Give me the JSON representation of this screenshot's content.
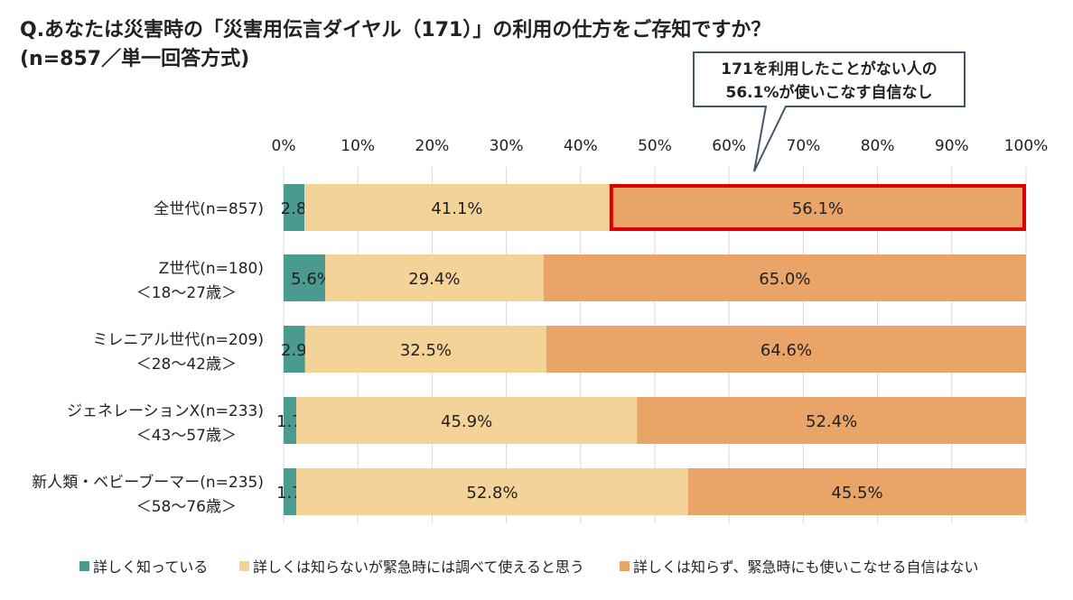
{
  "chart_data": {
    "type": "bar",
    "orientation": "horizontal",
    "stacked": true,
    "title": "Q.あなたは災害時の「災害用伝言ダイヤル（171）」の利用の仕方をご存知ですか？",
    "subtitle": "(n=857／単一回答方式)",
    "categories": [
      [
        "全世代(n=857)"
      ],
      [
        "Z世代(n=180)",
        "＜18～27歳＞"
      ],
      [
        "ミレニアル世代(n=209)",
        "＜28～42歳＞"
      ],
      [
        "ジェネレーションX(n=233)",
        "＜43～57歳＞"
      ],
      [
        "新人類・ベビーブーマー(n=235)",
        "＜58～76歳＞"
      ]
    ],
    "series": [
      {
        "name": "詳しく知っている",
        "color": "#4a9a8f",
        "values": [
          2.8,
          5.6,
          2.9,
          1.7,
          1.7
        ]
      },
      {
        "name": "詳しくは知らないが緊急時には調べて使えると思う",
        "color": "#f3d398",
        "values": [
          41.1,
          29.4,
          32.5,
          45.9,
          52.8
        ]
      },
      {
        "name": "詳しくは知らず、緊急時にも使いこなせる自信はない",
        "color": "#e9a468",
        "values": [
          56.1,
          65.0,
          64.6,
          52.4,
          45.5
        ]
      }
    ],
    "xlim": [
      0,
      100
    ],
    "ticks": [
      "0%",
      "10%",
      "20%",
      "30%",
      "40%",
      "50%",
      "60%",
      "70%",
      "80%",
      "90%",
      "100%"
    ],
    "grid": true,
    "legend": "bottom",
    "highlight": {
      "category_index": 0,
      "series_index": 2,
      "color": "#e00000"
    },
    "annotation": [
      "171を利用したことがない人の",
      "56.1%が使いこなす自信なし"
    ]
  }
}
